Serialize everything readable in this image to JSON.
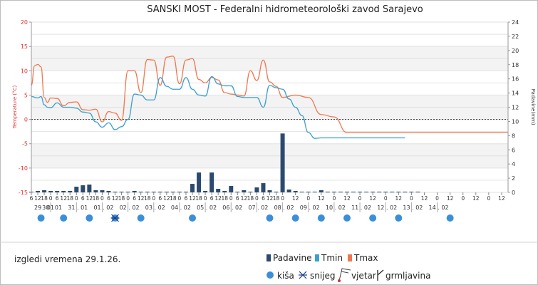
{
  "chart_data": {
    "type": "line",
    "title": "SANSKI MOST - Federalni hidrometeorološki zavod Sarajevo",
    "ylabel": "Temperature (°C)",
    "y2label": "Padavine(mm)",
    "ylim": [
      -15,
      20
    ],
    "y2lim": [
      0,
      24
    ],
    "left_ticks": [
      "20",
      "15",
      "10",
      "5",
      "0",
      "-5",
      "-10",
      "-15"
    ],
    "right_ticks": [
      "24",
      "22",
      "20",
      "18",
      "16",
      "14",
      "12",
      "10",
      "8",
      "6",
      "4",
      "2",
      "0"
    ],
    "days": [
      "29 . 01",
      "30 . 01",
      "31 . 01",
      "01 . 02",
      "02 . 02",
      "03 . 02",
      "04 . 02",
      "05 . 02",
      "06 . 02",
      "07 . 02",
      "08 . 02",
      "09 . 02",
      "10 . 02",
      "11 . 02",
      "12 . 02",
      "13 . 02",
      "14 . 02"
    ],
    "hour_labels": [
      "6",
      "12",
      "18",
      "0",
      "6",
      "12",
      "18",
      "0",
      "6",
      "12",
      "18",
      "0",
      "6",
      "12",
      "18",
      "0",
      "6",
      "12",
      "18",
      "0",
      "6",
      "12",
      "18",
      "0",
      "6",
      "12",
      "18",
      "0",
      "6",
      "12",
      "18",
      "0",
      "6",
      "12",
      "18",
      "0",
      "6",
      "12",
      "18",
      "0",
      "12",
      "0",
      "12",
      "0",
      "12",
      "0",
      "12",
      "0",
      "12",
      "0",
      "12",
      "0",
      "12",
      "0",
      "12",
      "0",
      "12"
    ],
    "hour_positions": [
      0,
      1,
      2,
      3,
      4,
      5,
      6,
      7,
      8,
      9,
      10,
      11,
      12,
      13,
      14,
      15,
      16,
      17,
      18,
      19,
      20,
      21,
      22,
      23,
      24,
      25,
      26,
      27,
      28,
      29,
      30,
      31,
      32,
      33,
      34,
      35,
      36,
      37,
      38,
      39,
      41,
      43,
      45,
      47,
      49,
      51,
      53,
      55,
      57,
      59,
      61,
      63,
      65,
      67,
      69,
      71,
      73
    ],
    "series": [
      {
        "name": "Tmax",
        "color": "#f07850",
        "x": [
          0,
          0.5,
          1,
          1.5,
          2,
          2.5,
          3,
          4,
          5,
          6,
          7,
          8,
          9,
          10,
          11,
          12,
          13,
          14,
          15,
          16,
          17,
          18,
          19,
          20,
          21,
          22,
          23,
          24,
          25,
          26,
          27,
          28,
          29,
          30,
          31,
          32,
          33,
          34,
          35,
          36,
          37,
          38,
          39,
          41,
          43,
          45,
          47,
          49,
          51,
          53,
          55,
          57,
          59,
          61,
          63,
          65,
          67,
          69,
          71,
          73,
          74
        ],
        "values": [
          7,
          11,
          11.3,
          10.8,
          4.5,
          3.5,
          4.4,
          4.3,
          2.8,
          3.5,
          3.6,
          2,
          1.9,
          2.1,
          -0.5,
          1.6,
          1.3,
          -0.2,
          10,
          10,
          5.5,
          12.3,
          12.2,
          7,
          12.8,
          13,
          7.3,
          12.2,
          12.5,
          8.2,
          7.5,
          8.6,
          8.1,
          5.5,
          5.2,
          5,
          4.8,
          10,
          8,
          12.2,
          7.7,
          6.8,
          4.5,
          5,
          4.5,
          1,
          0.5,
          -2.7,
          -2.7,
          -2.7,
          -2.7,
          -2.7,
          -2.7,
          -2.7,
          -2.7,
          -2.7,
          -2.7,
          -2.7,
          -2.7,
          -2.7,
          -2.7
        ]
      },
      {
        "name": "Tmin",
        "color": "#3c9fd0",
        "x": [
          0,
          1,
          1.5,
          2,
          2.5,
          3,
          4,
          5,
          6,
          7,
          8,
          9,
          10,
          11,
          12,
          13,
          14,
          15,
          16,
          17,
          18,
          19,
          20,
          21,
          22,
          23,
          24,
          25,
          26,
          27,
          28,
          29,
          30,
          31,
          32,
          33,
          34,
          35,
          36,
          37,
          38,
          39,
          40,
          41,
          42,
          43,
          44,
          45,
          46,
          47,
          48,
          49,
          50,
          51,
          52,
          53,
          54,
          55,
          56,
          57,
          58
        ],
        "values": [
          4.7,
          4.4,
          4.7,
          3,
          2.5,
          2.4,
          3.4,
          2.5,
          2.5,
          2.3,
          1.5,
          1.3,
          -0.5,
          -1.6,
          -0.7,
          -2.1,
          -1.5,
          0,
          5.2,
          5,
          4,
          4,
          8.6,
          6.8,
          6.2,
          6.2,
          8.6,
          6.2,
          5,
          4.8,
          8.8,
          7.3,
          6.9,
          6.9,
          4.7,
          4.5,
          4.5,
          4.5,
          2.5,
          7,
          6.5,
          6.2,
          4.2,
          2.5,
          0.8,
          -2.7,
          -3.9,
          -3.8,
          -3.8,
          -3.8,
          -3.8,
          -3.8,
          -3.8,
          -3.8,
          -3.8,
          -3.8,
          -3.8,
          -3.8,
          -3.8,
          -3.8,
          -3.8
        ]
      },
      {
        "name": "Padavine",
        "color": "#2c4a6e",
        "x": [
          0,
          1,
          2,
          3,
          4,
          5,
          6,
          7,
          8,
          9,
          10,
          11,
          12,
          13,
          14,
          15,
          16,
          17,
          18,
          19,
          20,
          21,
          22,
          23,
          24,
          25,
          26,
          27,
          28,
          29,
          30,
          31,
          32,
          33,
          34,
          35,
          36,
          37,
          38,
          39,
          40,
          41,
          42,
          43,
          44,
          45,
          46,
          47,
          48,
          49,
          50,
          51,
          52,
          53,
          54,
          55,
          56,
          57,
          58,
          59,
          60
        ],
        "values": [
          0.1,
          0.2,
          0.3,
          0.2,
          0.2,
          0.2,
          0.2,
          0.8,
          1,
          1.1,
          0.3,
          0.3,
          0.2,
          0.1,
          0.1,
          0.1,
          0.2,
          0.1,
          0.1,
          0.1,
          0.1,
          0.1,
          0.1,
          0.1,
          0.1,
          1.2,
          2.8,
          0.2,
          2.8,
          0.5,
          0.2,
          0.9,
          0.1,
          0.3,
          0.1,
          0.7,
          1.3,
          0.3,
          0.1,
          8.3,
          0.4,
          0.2,
          0.1,
          0.1,
          0.1,
          0.3,
          0.1,
          0.1,
          0.1,
          0.1,
          0.1,
          0.1,
          0.1,
          0.1,
          0.1,
          0.1,
          0.1,
          0.1,
          0.1,
          0.1,
          0.1
        ]
      }
    ],
    "xdomain": [
      0,
      74
    ],
    "rain_day_icons": [
      0,
      1,
      2,
      3,
      4,
      6,
      9,
      10,
      11,
      12,
      13,
      14,
      16
    ],
    "snow_day_icons": [
      3
    ],
    "grid": true,
    "legend": "bottom-center"
  },
  "footer": {
    "outlook": "izgledi vremena 29.1.26.",
    "legend_labels": [
      "Padavine",
      "Tmin",
      "Tmax"
    ],
    "icon_labels": [
      "kiša",
      "snijeg",
      "vjetar",
      "grmljavina"
    ]
  }
}
